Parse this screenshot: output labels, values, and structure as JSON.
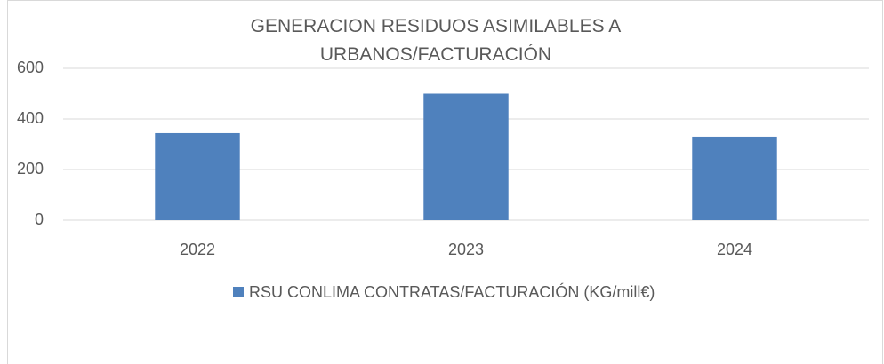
{
  "chart_data": {
    "type": "bar",
    "title": "GENERACION RESIDUOS ASIMILABLES A URBANOS/FACTURACIÓN",
    "categories": [
      "2022",
      "2023",
      "2024"
    ],
    "series": [
      {
        "name": "RSU CONLIMA CONTRATAS/FACTURACIÓN (KG/mill€)",
        "color": "#4f81bd",
        "values": [
          344,
          500,
          330
        ]
      }
    ],
    "ylim": [
      0,
      600
    ],
    "yticks": [
      0,
      200,
      400,
      600
    ],
    "grid": true,
    "legend": "bottom"
  }
}
